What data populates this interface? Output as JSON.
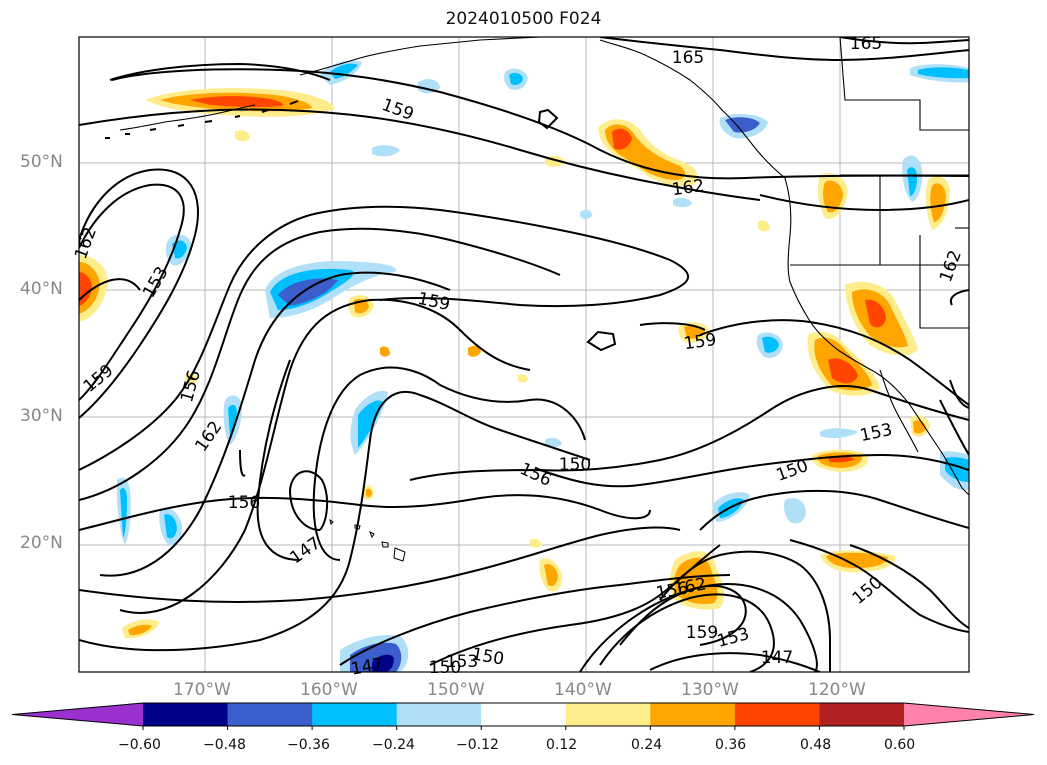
{
  "title": "2024010500 F024",
  "lat_labels": [
    "50°N",
    "40°N",
    "30°N",
    "20°N"
  ],
  "lon_labels": [
    "170°W",
    "160°W",
    "150°W",
    "140°W",
    "130°W",
    "120°W"
  ],
  "contour_labels": [
    "165",
    "165",
    "159",
    "162",
    "159",
    "159",
    "153",
    "162",
    "159",
    "156",
    "162",
    "156",
    "147",
    "156",
    "150",
    "153",
    "150",
    "150",
    "153",
    "156",
    "162",
    "159",
    "153",
    "147",
    "147",
    "150",
    "150",
    "162"
  ],
  "colorbar": {
    "ticks": [
      "−0.60",
      "−0.48",
      "−0.36",
      "−0.24",
      "−0.12",
      "0.12",
      "0.24",
      "0.36",
      "0.48",
      "0.60"
    ],
    "colors": [
      "#9b30d0",
      "#00008b",
      "#3a5fcd",
      "#00bfff",
      "#b0e0f8",
      "#ffffff",
      "#ffec8b",
      "#ffa500",
      "#ff4500",
      "#b22222",
      "#ff82ab"
    ]
  }
}
